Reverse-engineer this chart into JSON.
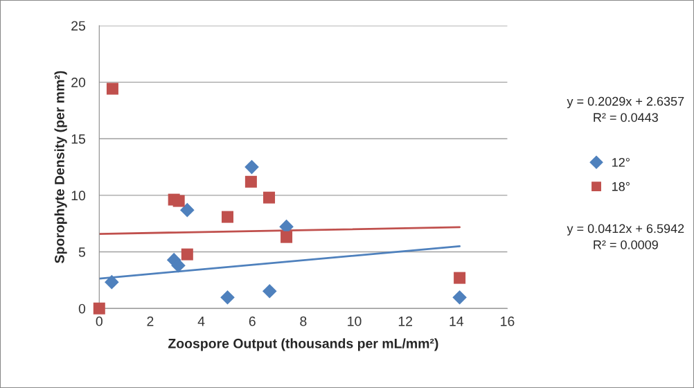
{
  "chart_data": {
    "type": "scatter",
    "xlabel": "Zoospore Output (thousands per mL/mm²)",
    "ylabel": "Sporophyte Density (per mm²)",
    "xlim": [
      0,
      16
    ],
    "xticks": [
      0,
      2,
      4,
      6,
      8,
      10,
      12,
      14,
      16
    ],
    "ylim": [
      0,
      25
    ],
    "yticks": [
      0,
      5,
      10,
      15,
      20,
      25
    ],
    "grid": "y",
    "legend": "right",
    "series": [
      {
        "name": "12°",
        "marker": "diamond",
        "color": "#4f81bd",
        "x": [
          0.49,
          2.93,
          3.1,
          3.45,
          5.03,
          5.98,
          6.68,
          7.34,
          14.13
        ],
        "values": [
          2.33,
          4.29,
          3.8,
          8.7,
          0.98,
          12.5,
          1.53,
          7.23,
          0.98
        ]
      },
      {
        "name": "18°",
        "marker": "square",
        "color": "#c0504d",
        "x": [
          0,
          0.52,
          2.93,
          3.12,
          3.45,
          5.03,
          5.95,
          6.66,
          7.34,
          14.13
        ],
        "values": [
          0,
          19.42,
          9.62,
          9.5,
          4.78,
          8.09,
          11.2,
          9.8,
          6.31,
          2.7
        ]
      },
      {
        "type": "line",
        "color": "#4f81bd",
        "x": [
          0,
          14.13
        ],
        "values": [
          2.64,
          5.5
        ]
      },
      {
        "type": "line",
        "color": "#c0504d",
        "x": [
          0,
          14.13
        ],
        "values": [
          6.59,
          7.18
        ]
      }
    ],
    "annotations": [
      "y = 0.2029x + 2.6357\nR² = 0.0443",
      "y = 0.0412x + 6.5942\nR² = 0.0009"
    ]
  }
}
